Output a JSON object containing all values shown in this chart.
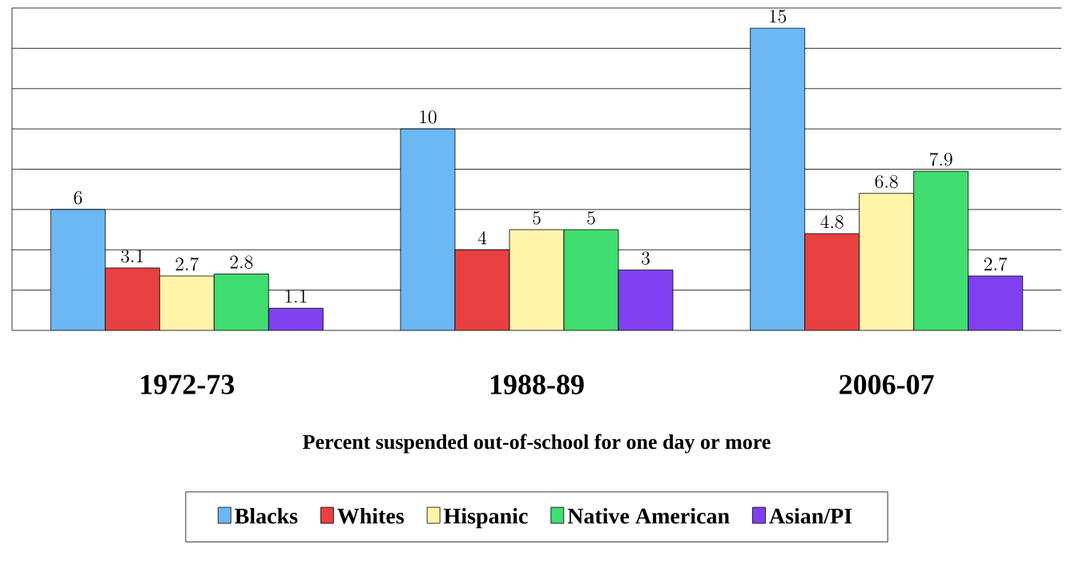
{
  "chart_data": {
    "type": "bar",
    "xlabel": "Percent suspended out-of-school for one day or more",
    "categories": [
      "1972-73",
      "1988-89",
      "2006-07"
    ],
    "series": [
      {
        "name": "Blacks",
        "color": "#6bb8f5",
        "values": [
          6,
          10,
          15
        ]
      },
      {
        "name": "Whites",
        "color": "#e84040",
        "values": [
          3.1,
          4,
          4.8
        ]
      },
      {
        "name": "Hispanic",
        "color": "#fff4a8",
        "values": [
          2.7,
          5,
          6.8
        ]
      },
      {
        "name": "Native American",
        "color": "#40dd70",
        "values": [
          2.8,
          5,
          7.9
        ]
      },
      {
        "name": "Asian/PI",
        "color": "#8040f0",
        "values": [
          1.1,
          3,
          2.7
        ]
      }
    ],
    "ylim": [
      0,
      16
    ],
    "yticks": [
      {
        "value": 2,
        "label": null
      },
      {
        "value": 4,
        "label": null
      },
      {
        "value": 6,
        "label": null
      },
      {
        "value": 8,
        "label": null
      },
      {
        "value": 10,
        "label": null
      },
      {
        "value": 12,
        "label": null
      },
      {
        "value": 14,
        "label": null
      },
      {
        "value": 16,
        "label": null
      }
    ],
    "tick_labels": "x",
    "grid": "y",
    "data_labels": true,
    "legend": "bottom"
  }
}
